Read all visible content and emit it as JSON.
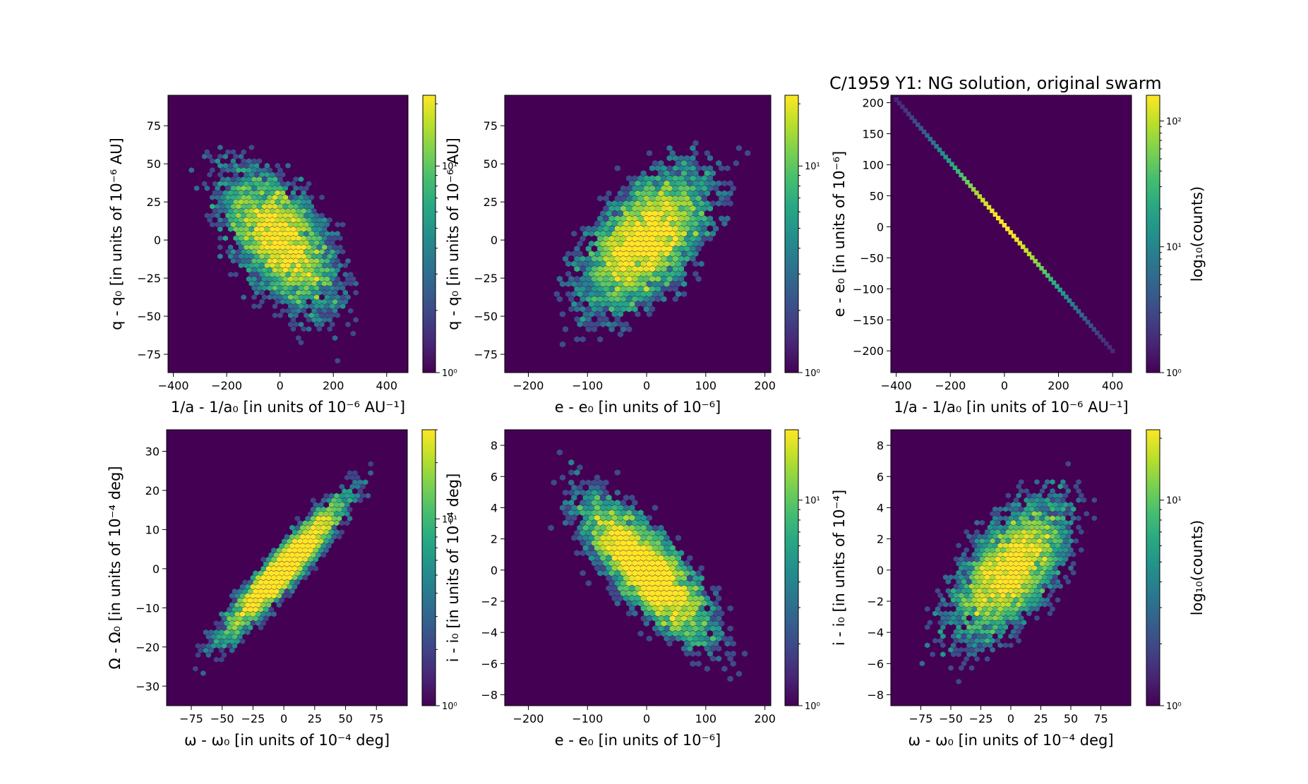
{
  "figure_title": "C/1959 Y1:  NG solution, original swarm",
  "chart_data": [
    {
      "type": "heatmap",
      "subtype": "hexbin",
      "xlabel": "1/a - 1/a₀ [in units of 10⁻⁶ AU⁻¹]",
      "ylabel": "q - q₀ [in units of 10⁻⁶ AU]",
      "xlim": [
        -420,
        480
      ],
      "ylim": [
        -87,
        95
      ],
      "xticks": [
        -400,
        -200,
        0,
        200,
        400
      ],
      "xticklabels": [
        "−400",
        "−200",
        "0",
        "200",
        "400"
      ],
      "yticks": [
        -75,
        -50,
        -25,
        0,
        25,
        50,
        75
      ],
      "yticklabels": [
        "−75",
        "−50",
        "−25",
        "0",
        "25",
        "50",
        "75"
      ],
      "correlation": -0.55,
      "spread": [
        110,
        24
      ],
      "center": [
        0,
        0
      ],
      "colorbar": {
        "scale": "log",
        "range": [
          1,
          22
        ],
        "ticks": [
          1,
          10
        ],
        "ticklabels": [
          "10⁰",
          "10¹"
        ],
        "label": ""
      }
    },
    {
      "type": "heatmap",
      "subtype": "hexbin",
      "xlabel": "e - e₀ [in units of 10⁻⁶]",
      "ylabel": "q - q₀ [in units of 10⁻⁶ AU]",
      "xlim": [
        -240,
        210
      ],
      "ylim": [
        -87,
        95
      ],
      "xticks": [
        -200,
        -100,
        0,
        100,
        200
      ],
      "xticklabels": [
        "−200",
        "−100",
        "0",
        "100",
        "200"
      ],
      "yticks": [
        -75,
        -50,
        -25,
        0,
        25,
        50,
        75
      ],
      "yticklabels": [
        "−75",
        "−50",
        "−25",
        "0",
        "25",
        "50",
        "75"
      ],
      "correlation": 0.55,
      "spread": [
        55,
        24
      ],
      "center": [
        0,
        0
      ],
      "colorbar": {
        "scale": "log",
        "range": [
          1,
          22
        ],
        "ticks": [
          1,
          10
        ],
        "ticklabels": [
          "10⁰",
          "10¹"
        ],
        "label": ""
      }
    },
    {
      "type": "heatmap",
      "subtype": "hexbin",
      "xlabel": "1/a - 1/a₀ [in units of 10⁻⁶ AU⁻¹]",
      "ylabel": "e - e₀ [in units of 10⁻⁶]",
      "xlim": [
        -420,
        470
      ],
      "ylim": [
        -235,
        212
      ],
      "xticks": [
        -400,
        -200,
        0,
        200,
        400
      ],
      "xticklabels": [
        "−400",
        "−200",
        "0",
        "200",
        "400"
      ],
      "yticks": [
        -200,
        -150,
        -100,
        -50,
        0,
        50,
        100,
        150,
        200
      ],
      "yticklabels": [
        "−200",
        "−150",
        "−100",
        "−50",
        "0",
        "50",
        "100",
        "150",
        "200"
      ],
      "line": {
        "x": [
          -400,
          400
        ],
        "y": [
          205,
          -200
        ]
      },
      "colorbar": {
        "scale": "log",
        "range": [
          1,
          160
        ],
        "ticks": [
          1,
          10,
          100
        ],
        "ticklabels": [
          "10⁰",
          "10¹",
          "10²"
        ],
        "label": "log₁₀(counts)"
      }
    },
    {
      "type": "heatmap",
      "subtype": "hexbin",
      "xlabel": "ω - ω₀ [in units of 10⁻⁴ deg]",
      "ylabel": "Ω - Ω₀ [in units of 10⁻⁴ deg]",
      "xlim": [
        -95,
        100
      ],
      "ylim": [
        -35,
        35.5
      ],
      "xticks": [
        -75,
        -50,
        -25,
        0,
        25,
        50,
        75
      ],
      "xticklabels": [
        "−75",
        "−50",
        "−25",
        "0",
        "25",
        "50",
        "75"
      ],
      "yticks": [
        -30,
        -20,
        -10,
        0,
        10,
        20,
        30
      ],
      "yticklabels": [
        "−30",
        "−20",
        "−10",
        "0",
        "10",
        "20",
        "30"
      ],
      "correlation": 0.94,
      "spread": [
        25,
        9
      ],
      "center": [
        0,
        0
      ],
      "colorbar": {
        "scale": "log",
        "range": [
          1,
          30
        ],
        "ticks": [
          1,
          10
        ],
        "ticklabels": [
          "10⁰",
          "10¹"
        ],
        "label": ""
      }
    },
    {
      "type": "heatmap",
      "subtype": "hexbin",
      "xlabel": "e - e₀ [in units of 10⁻⁶]",
      "ylabel": "i - i₀ [in units of 10⁻⁴ deg]",
      "xlim": [
        -240,
        210
      ],
      "ylim": [
        -8.7,
        9
      ],
      "xticks": [
        -200,
        -100,
        0,
        100,
        200
      ],
      "xticklabels": [
        "−200",
        "−100",
        "0",
        "100",
        "200"
      ],
      "yticks": [
        -8,
        -6,
        -4,
        -2,
        0,
        2,
        4,
        6,
        8
      ],
      "yticklabels": [
        "−8",
        "−6",
        "−4",
        "−2",
        "0",
        "2",
        "4",
        "6",
        "8"
      ],
      "correlation": -0.78,
      "spread": [
        55,
        2.3
      ],
      "center": [
        0,
        0
      ],
      "colorbar": {
        "scale": "log",
        "range": [
          1,
          22
        ],
        "ticks": [
          1,
          10
        ],
        "ticklabels": [
          "10⁰",
          "10¹"
        ],
        "label": ""
      }
    },
    {
      "type": "heatmap",
      "subtype": "hexbin",
      "xlabel": "ω - ω₀ [in units of 10⁻⁴ deg]",
      "ylabel": "i - i₀ [in units of 10⁻⁴]",
      "xlim": [
        -100,
        100
      ],
      "ylim": [
        -8.7,
        9
      ],
      "xticks": [
        -75,
        -50,
        -25,
        0,
        25,
        50,
        75
      ],
      "xticklabels": [
        "−75",
        "−50",
        "−25",
        "0",
        "25",
        "50",
        "75"
      ],
      "yticks": [
        -8,
        -6,
        -4,
        -2,
        0,
        2,
        4,
        6,
        8
      ],
      "yticklabels": [
        "−8",
        "−6",
        "−4",
        "−2",
        "0",
        "2",
        "4",
        "6",
        "8"
      ],
      "correlation": 0.6,
      "spread": [
        25,
        2.3
      ],
      "center": [
        0,
        0
      ],
      "colorbar": {
        "scale": "log",
        "range": [
          1,
          22
        ],
        "ticks": [
          1,
          10
        ],
        "ticklabels": [
          "10⁰",
          "10¹"
        ],
        "label": "log₁₀(counts)"
      }
    }
  ]
}
